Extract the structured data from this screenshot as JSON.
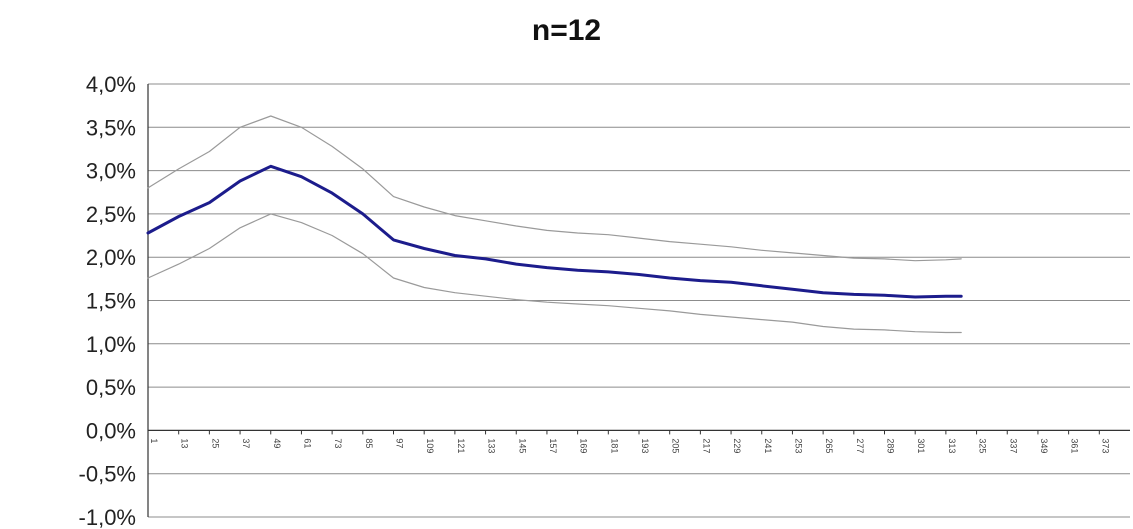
{
  "chart_data": {
    "type": "line",
    "title": "n=12",
    "xlabel": "",
    "ylabel": "",
    "y_unit": "%",
    "ylim": [
      -1.0,
      4.0
    ],
    "y_ticks": [
      4.0,
      3.5,
      3.0,
      2.5,
      2.0,
      1.5,
      1.0,
      0.5,
      0.0,
      -0.5,
      -1.0
    ],
    "y_tick_labels": [
      "4,0%",
      "3,5%",
      "3,0%",
      "2,5%",
      "2,0%",
      "1,5%",
      "1,0%",
      "0,5%",
      "0,0%",
      "-0,5%",
      "-1,0%"
    ],
    "xlim": [
      1,
      385
    ],
    "x_tick_labels": [
      "1",
      "13",
      "25",
      "37",
      "49",
      "61",
      "73",
      "85",
      "97",
      "109",
      "121",
      "133",
      "145",
      "157",
      "169",
      "181",
      "193",
      "205",
      "217",
      "229",
      "241",
      "253",
      "265",
      "277",
      "289",
      "301",
      "313",
      "325",
      "337",
      "349",
      "361",
      "373"
    ],
    "grid": {
      "horizontal": true,
      "vertical": false
    },
    "legend": "none",
    "x": [
      1,
      13,
      25,
      37,
      49,
      61,
      73,
      85,
      97,
      109,
      121,
      133,
      145,
      157,
      169,
      181,
      193,
      205,
      217,
      229,
      241,
      253,
      265,
      277,
      289,
      301,
      313,
      319
    ],
    "series": [
      {
        "color": "#1c1c8c",
        "width": 3,
        "values": [
          2.28,
          2.47,
          2.63,
          2.88,
          3.05,
          2.93,
          2.74,
          2.5,
          2.2,
          2.1,
          2.02,
          1.98,
          1.92,
          1.88,
          1.85,
          1.83,
          1.8,
          1.76,
          1.73,
          1.71,
          1.67,
          1.63,
          1.59,
          1.57,
          1.56,
          1.54,
          1.55,
          1.55
        ]
      },
      {
        "color": "#9a9a9a",
        "width": 1.2,
        "values": [
          2.8,
          3.02,
          3.22,
          3.5,
          3.63,
          3.5,
          3.28,
          3.02,
          2.7,
          2.58,
          2.48,
          2.42,
          2.36,
          2.31,
          2.28,
          2.26,
          2.22,
          2.18,
          2.15,
          2.12,
          2.08,
          2.05,
          2.02,
          1.99,
          1.98,
          1.96,
          1.97,
          1.98
        ]
      },
      {
        "color": "#9a9a9a",
        "width": 1.2,
        "values": [
          1.76,
          1.92,
          2.1,
          2.34,
          2.5,
          2.4,
          2.25,
          2.04,
          1.76,
          1.65,
          1.59,
          1.55,
          1.51,
          1.48,
          1.46,
          1.44,
          1.41,
          1.38,
          1.34,
          1.31,
          1.28,
          1.25,
          1.2,
          1.17,
          1.16,
          1.14,
          1.13,
          1.13
        ]
      }
    ]
  }
}
